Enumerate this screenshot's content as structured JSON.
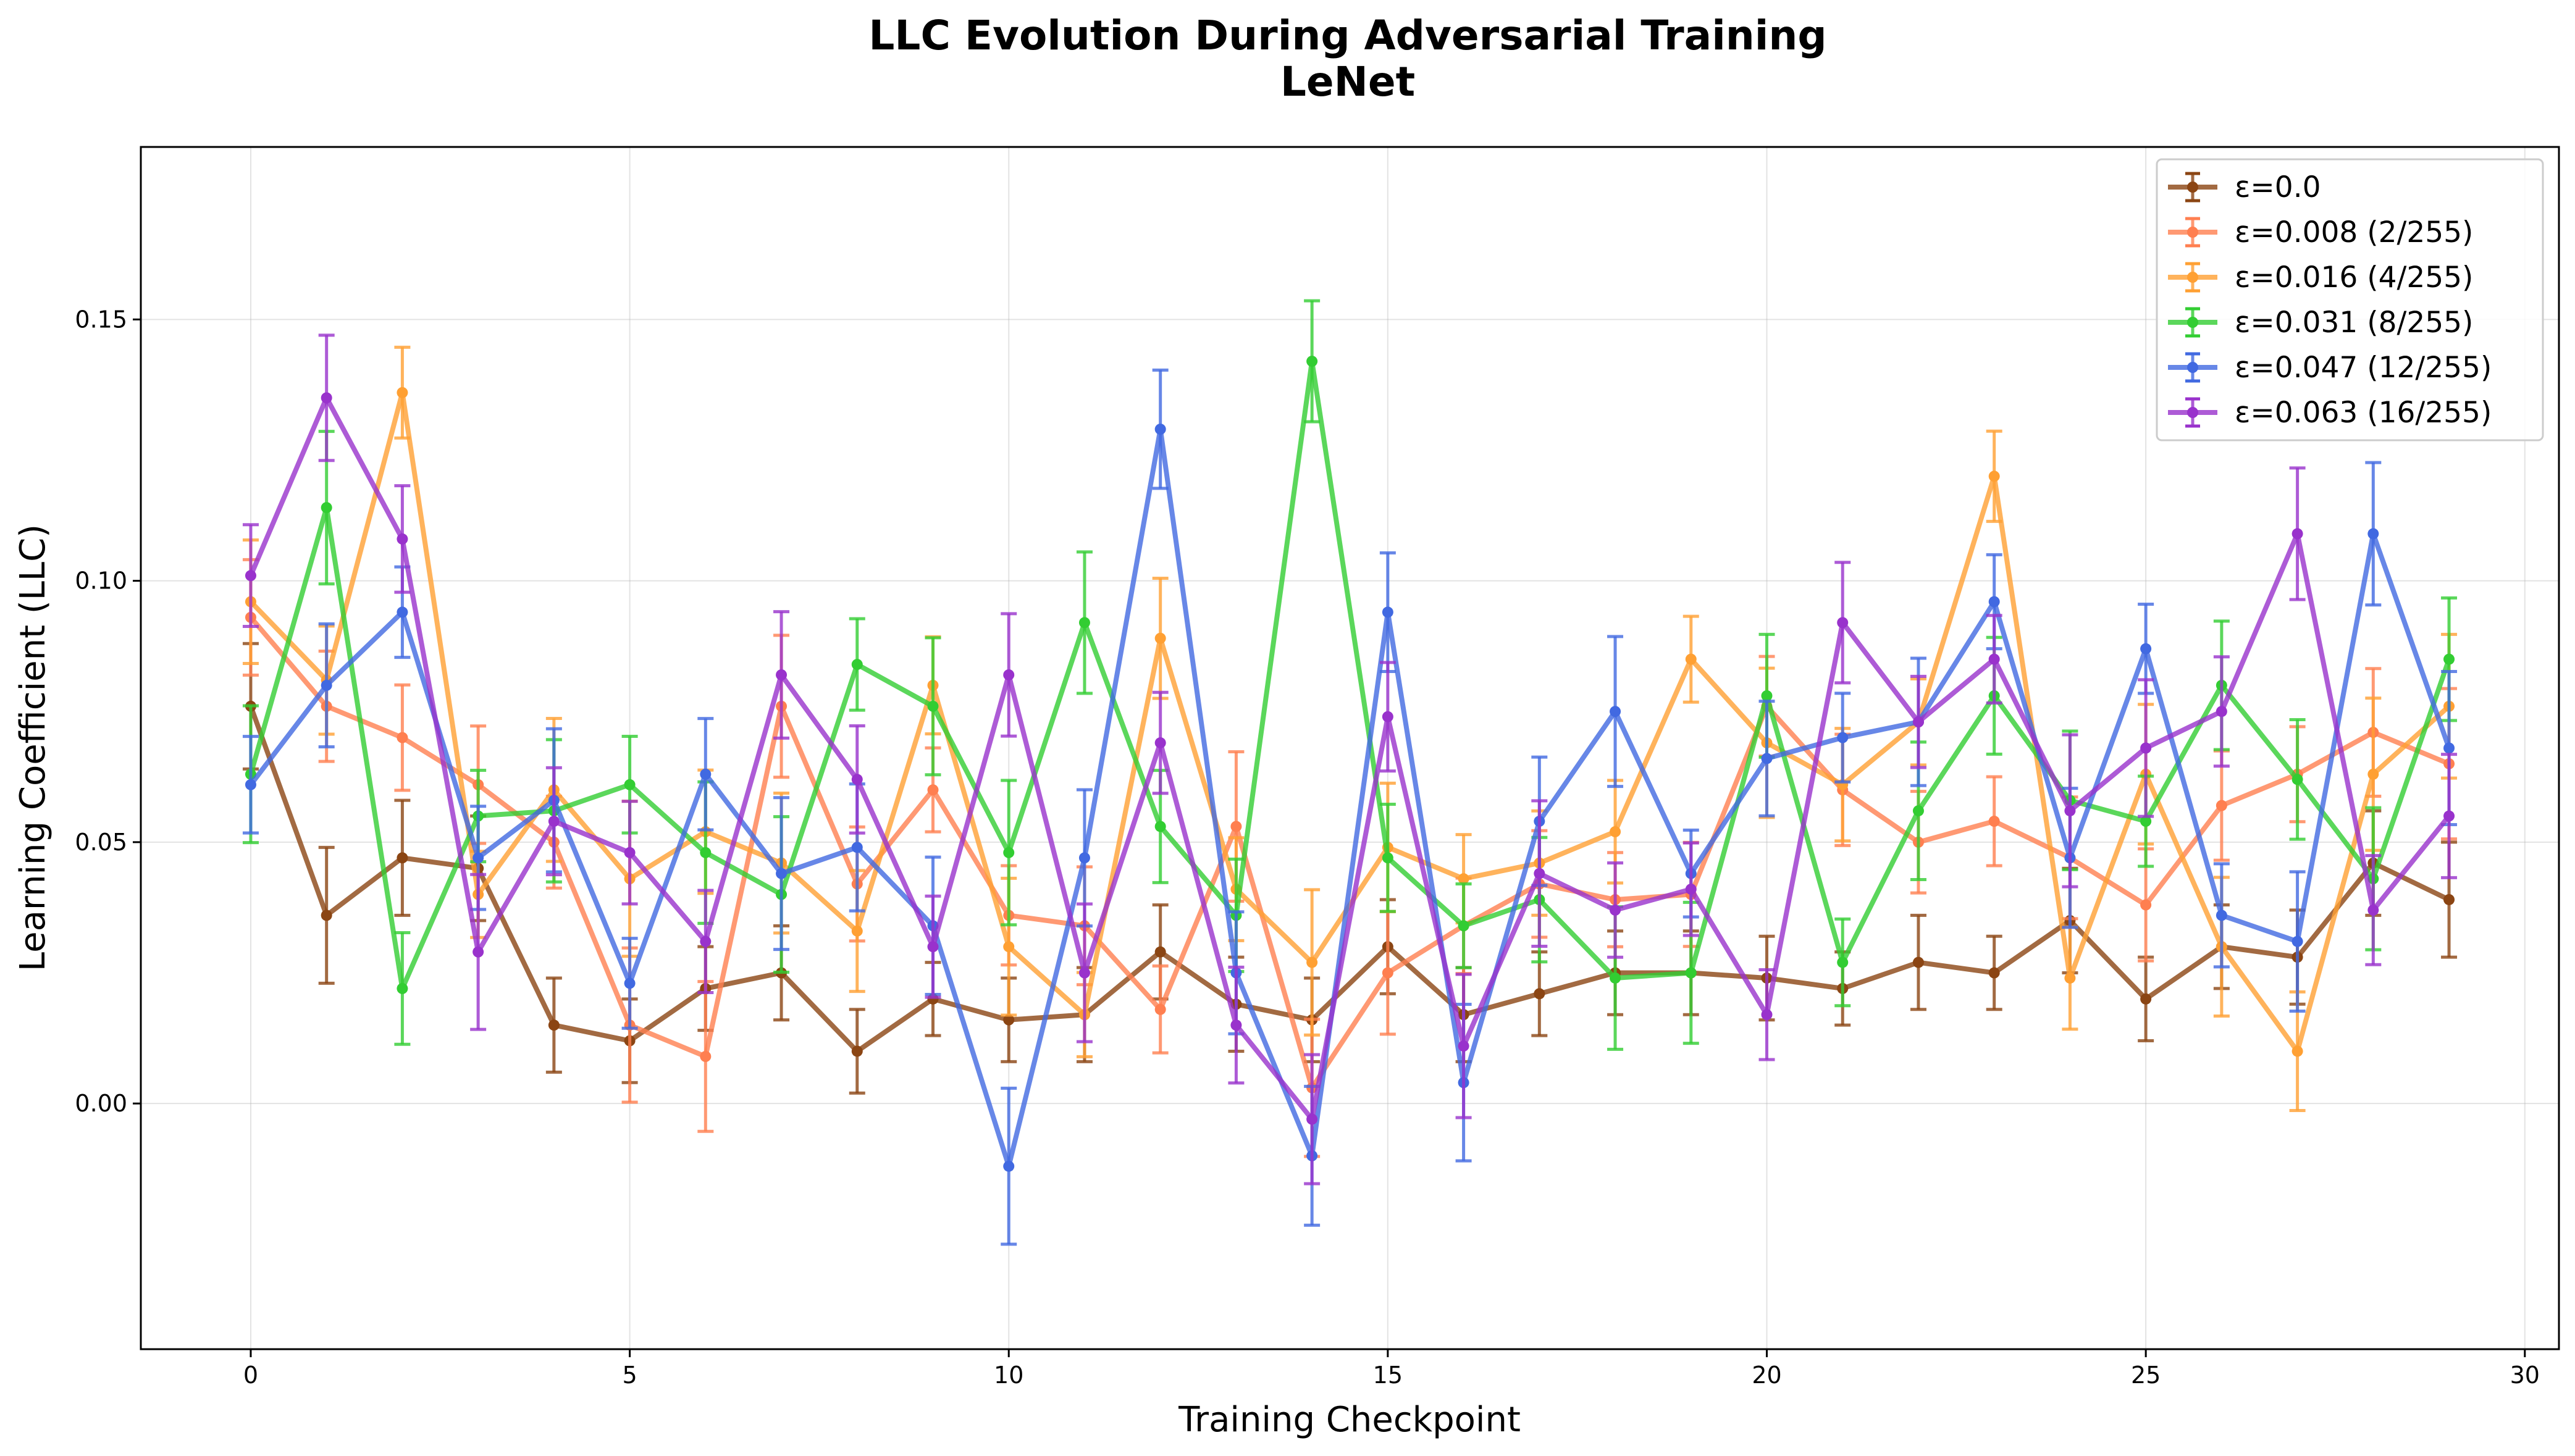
{
  "title": "LLC Evolution During Adversarial Training",
  "subtitle": "LeNet",
  "chart_data": {
    "type": "line",
    "title": "LLC Evolution During Adversarial Training",
    "subtitle": "LeNet",
    "xlabel": "Training Checkpoint",
    "ylabel": "Learning Coefficient (LLC)",
    "xlim": [
      -1.45,
      30.45
    ],
    "ylim": [
      -0.047,
      0.183
    ],
    "xticks": [
      0,
      5,
      10,
      15,
      20,
      25,
      30
    ],
    "yticks": [
      0.0,
      0.05,
      0.1,
      0.15
    ],
    "xtick_labels": [
      "0",
      "5",
      "10",
      "15",
      "20",
      "25",
      "30"
    ],
    "ytick_labels": [
      "0.00",
      "0.05",
      "0.10",
      "0.15"
    ],
    "grid": true,
    "legend_position": "top-right",
    "error_bars": true,
    "x": [
      0,
      1,
      2,
      3,
      4,
      5,
      6,
      7,
      8,
      9,
      10,
      11,
      12,
      13,
      14,
      15,
      16,
      17,
      18,
      19,
      20,
      21,
      22,
      23,
      24,
      25,
      26,
      27,
      28,
      29
    ],
    "series": [
      {
        "name": "ε=0.0",
        "color": "#8B4513",
        "values": [
          0.076,
          0.036,
          0.047,
          0.045,
          0.015,
          0.012,
          0.022,
          0.025,
          0.01,
          0.02,
          0.016,
          0.017,
          0.029,
          0.019,
          0.016,
          0.03,
          0.017,
          0.021,
          0.025,
          0.025,
          0.024,
          0.022,
          0.027,
          0.025,
          0.035,
          0.02,
          0.03,
          0.028,
          0.046,
          0.039
        ],
        "errors": [
          0.012,
          0.013,
          0.011,
          0.01,
          0.009,
          0.008,
          0.008,
          0.009,
          0.008,
          0.007,
          0.008,
          0.009,
          0.009,
          0.009,
          0.008,
          0.009,
          0.009,
          0.008,
          0.008,
          0.008,
          0.008,
          0.007,
          0.009,
          0.007,
          0.01,
          0.008,
          0.008,
          0.009,
          0.01,
          0.011
        ]
      },
      {
        "name": "ε=0.008 (2/255)",
        "color": "#FF7F50",
        "values": [
          0.093,
          0.076,
          0.07,
          0.061,
          0.05,
          0.015,
          0.009,
          0.076,
          0.042,
          0.06,
          0.036,
          0.034,
          0.018,
          0.053,
          0.003,
          0.025,
          0.034,
          0.042,
          0.039,
          0.04,
          0.076,
          0.06,
          0.05,
          0.054,
          0.047,
          0.038,
          0.057,
          0.063,
          0.071,
          0.065
        ]
      },
      {
        "name": "ε=0.016 (4/255)",
        "color": "#FFA033",
        "values": [
          0.096,
          0.081,
          0.136,
          0.04,
          0.06,
          0.043,
          0.052,
          0.046,
          0.033,
          0.08,
          0.03,
          0.017,
          0.089,
          0.041,
          0.027,
          0.049,
          0.043,
          0.046,
          0.052,
          0.085,
          0.069,
          0.061,
          0.073,
          0.12,
          0.024,
          0.063,
          0.03,
          0.01,
          0.063,
          0.076
        ]
      },
      {
        "name": "ε=0.031 (8/255)",
        "color": "#32CD32",
        "values": [
          0.063,
          0.114,
          0.022,
          0.055,
          0.056,
          0.061,
          0.048,
          0.04,
          0.084,
          0.076,
          0.048,
          0.092,
          0.053,
          0.036,
          0.142,
          0.047,
          0.034,
          0.039,
          0.024,
          0.025,
          0.078,
          0.027,
          0.056,
          0.078,
          0.058,
          0.054,
          0.08,
          0.062,
          0.043,
          0.085
        ]
      },
      {
        "name": "ε=0.047 (12/255)",
        "color": "#4169E1",
        "values": [
          0.061,
          0.08,
          0.094,
          0.047,
          0.058,
          0.023,
          0.063,
          0.044,
          0.049,
          0.034,
          -0.012,
          0.047,
          0.129,
          0.025,
          -0.01,
          0.094,
          0.004,
          0.054,
          0.075,
          0.044,
          0.066,
          0.07,
          0.073,
          0.096,
          0.047,
          0.087,
          0.036,
          0.031,
          0.109,
          0.068
        ]
      },
      {
        "name": "ε=0.063 (16/255)",
        "color": "#9932CC",
        "values": [
          0.101,
          0.135,
          0.108,
          0.029,
          0.054,
          0.048,
          0.031,
          0.082,
          0.062,
          0.03,
          0.082,
          0.025,
          0.069,
          0.015,
          -0.003,
          0.074,
          0.011,
          0.044,
          0.037,
          0.041,
          0.017,
          0.092,
          0.073,
          0.085,
          0.056,
          0.068,
          0.075,
          0.109,
          0.037,
          0.055
        ]
      }
    ]
  }
}
